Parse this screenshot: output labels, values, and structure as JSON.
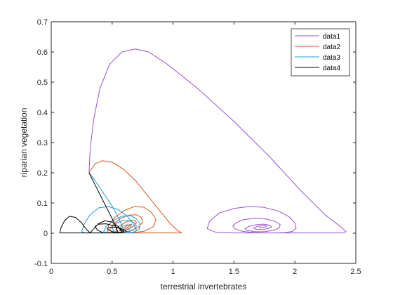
{
  "chart_data": {
    "type": "line",
    "title": "",
    "xlabel": "terrestrial invertebrates",
    "ylabel": "riparian vegetation",
    "xlim": [
      0,
      2.5
    ],
    "ylim": [
      -0.1,
      0.7
    ],
    "xticks": [
      0,
      0.5,
      1,
      1.5,
      2,
      2.5
    ],
    "xtick_labels": [
      "0",
      "0.5",
      "1",
      "1.5",
      "2",
      "2.5"
    ],
    "yticks": [
      -0.1,
      0,
      0.1,
      0.2,
      0.3,
      0.4,
      0.5,
      0.6,
      0.7
    ],
    "ytick_labels": [
      "-0.1",
      "0",
      "0.1",
      "0.2",
      "0.3",
      "0.4",
      "0.5",
      "0.6",
      "0.7"
    ],
    "grid": false,
    "legend_position": "top-right",
    "series": [
      {
        "name": "data1",
        "color": "#9e4fd6",
        "x": [
          0.31,
          0.32,
          0.35,
          0.4,
          0.48,
          0.58,
          0.69,
          0.8,
          0.95,
          1.2,
          1.5,
          1.8,
          2.05,
          2.25,
          2.38,
          2.42,
          2.39,
          2.28,
          2.1,
          1.9,
          1.7,
          1.5,
          1.35,
          1.28,
          1.3,
          1.38,
          1.5,
          1.62,
          1.74,
          1.86,
          1.95,
          2.0,
          2.01,
          1.98,
          1.92,
          1.85,
          1.76,
          1.66,
          1.57,
          1.51,
          1.49,
          1.52,
          1.58,
          1.67,
          1.76,
          1.84,
          1.88,
          1.87,
          1.82,
          1.75,
          1.67,
          1.61,
          1.59,
          1.62,
          1.68,
          1.74,
          1.79,
          1.81,
          1.78,
          1.73,
          1.68,
          1.66,
          1.69,
          1.74,
          1.77,
          1.76,
          1.73,
          1.71,
          1.72
        ],
        "y": [
          0.2,
          0.28,
          0.38,
          0.48,
          0.56,
          0.6,
          0.61,
          0.6,
          0.56,
          0.48,
          0.37,
          0.25,
          0.14,
          0.06,
          0.02,
          0.005,
          0.001,
          0.001,
          0.001,
          0.001,
          0.001,
          0.001,
          0.003,
          0.015,
          0.04,
          0.067,
          0.082,
          0.088,
          0.086,
          0.074,
          0.055,
          0.034,
          0.016,
          0.006,
          0.002,
          0.001,
          0.001,
          0.002,
          0.006,
          0.014,
          0.024,
          0.035,
          0.045,
          0.049,
          0.047,
          0.039,
          0.028,
          0.017,
          0.009,
          0.005,
          0.005,
          0.009,
          0.015,
          0.022,
          0.028,
          0.03,
          0.027,
          0.021,
          0.015,
          0.012,
          0.013,
          0.017,
          0.022,
          0.025,
          0.024,
          0.021,
          0.018,
          0.018,
          0.02
        ]
      },
      {
        "name": "data2",
        "color": "#d95319",
        "x": [
          0.31,
          0.36,
          0.42,
          0.5,
          0.6,
          0.7,
          0.8,
          0.9,
          0.98,
          1.04,
          1.07,
          1.05,
          0.95,
          0.8,
          0.65,
          0.52,
          0.46,
          0.47,
          0.52,
          0.6,
          0.68,
          0.76,
          0.82,
          0.86,
          0.84,
          0.76,
          0.66,
          0.57,
          0.5,
          0.48,
          0.51,
          0.57,
          0.64,
          0.7,
          0.74,
          0.75,
          0.71,
          0.64,
          0.58,
          0.54,
          0.53,
          0.56,
          0.61,
          0.66,
          0.69,
          0.7,
          0.67,
          0.62,
          0.58,
          0.56,
          0.57,
          0.61,
          0.64,
          0.66,
          0.65,
          0.62,
          0.6,
          0.59,
          0.61,
          0.63,
          0.62
        ],
        "y": [
          0.2,
          0.23,
          0.24,
          0.235,
          0.21,
          0.17,
          0.12,
          0.07,
          0.03,
          0.008,
          0.001,
          0.001,
          0.001,
          0.001,
          0.001,
          0.001,
          0.004,
          0.025,
          0.052,
          0.075,
          0.088,
          0.086,
          0.07,
          0.046,
          0.022,
          0.006,
          0.002,
          0.001,
          0.003,
          0.012,
          0.03,
          0.049,
          0.06,
          0.061,
          0.052,
          0.036,
          0.018,
          0.007,
          0.003,
          0.004,
          0.012,
          0.024,
          0.036,
          0.043,
          0.042,
          0.034,
          0.022,
          0.012,
          0.007,
          0.008,
          0.014,
          0.022,
          0.028,
          0.029,
          0.025,
          0.018,
          0.013,
          0.012,
          0.015,
          0.019,
          0.02
        ]
      },
      {
        "name": "data3",
        "color": "#1f9bd8",
        "x": [
          0.31,
          0.35,
          0.4,
          0.45,
          0.5,
          0.54,
          0.57,
          0.59,
          0.6,
          0.55,
          0.45,
          0.35,
          0.28,
          0.25,
          0.27,
          0.32,
          0.39,
          0.47,
          0.55,
          0.62,
          0.67,
          0.7,
          0.68,
          0.6,
          0.52,
          0.46,
          0.43,
          0.45,
          0.51,
          0.58,
          0.65,
          0.7,
          0.73,
          0.72,
          0.67,
          0.61,
          0.55,
          0.51,
          0.5,
          0.53,
          0.58,
          0.63,
          0.68,
          0.7,
          0.68,
          0.64,
          0.6,
          0.57,
          0.56,
          0.58,
          0.62,
          0.65,
          0.66,
          0.64,
          0.61
        ],
        "y": [
          0.2,
          0.18,
          0.15,
          0.12,
          0.09,
          0.06,
          0.035,
          0.015,
          0.001,
          0.001,
          0.001,
          0.001,
          0.001,
          0.005,
          0.03,
          0.062,
          0.084,
          0.088,
          0.078,
          0.058,
          0.033,
          0.01,
          0.001,
          0.001,
          0.001,
          0.001,
          0.005,
          0.022,
          0.042,
          0.056,
          0.058,
          0.048,
          0.03,
          0.012,
          0.003,
          0.001,
          0.002,
          0.008,
          0.02,
          0.032,
          0.041,
          0.042,
          0.035,
          0.023,
          0.012,
          0.005,
          0.004,
          0.008,
          0.016,
          0.024,
          0.028,
          0.026,
          0.02,
          0.013,
          0.01
        ]
      },
      {
        "name": "data4",
        "color": "#000000",
        "x": [
          0.31,
          0.36,
          0.41,
          0.46,
          0.51,
          0.55,
          0.5,
          0.4,
          0.3,
          0.2,
          0.1,
          0.07,
          0.08,
          0.11,
          0.15,
          0.2,
          0.25,
          0.29,
          0.32,
          0.35,
          0.39,
          0.44,
          0.5,
          0.55,
          0.58,
          0.56,
          0.5,
          0.43,
          0.38,
          0.36,
          0.39,
          0.45,
          0.52,
          0.57,
          0.6,
          0.58,
          0.52,
          0.47,
          0.46,
          0.5,
          0.56,
          0.6,
          0.62
        ],
        "y": [
          0.2,
          0.16,
          0.12,
          0.08,
          0.04,
          0.002,
          0.001,
          0.001,
          0.001,
          0.001,
          0.001,
          0.001,
          0.018,
          0.042,
          0.056,
          0.052,
          0.034,
          0.012,
          0.001,
          0.015,
          0.032,
          0.041,
          0.037,
          0.022,
          0.005,
          0.001,
          0.001,
          0.001,
          0.01,
          0.022,
          0.03,
          0.031,
          0.024,
          0.013,
          0.004,
          0.001,
          0.003,
          0.01,
          0.017,
          0.02,
          0.017,
          0.01,
          0.005
        ]
      }
    ]
  }
}
